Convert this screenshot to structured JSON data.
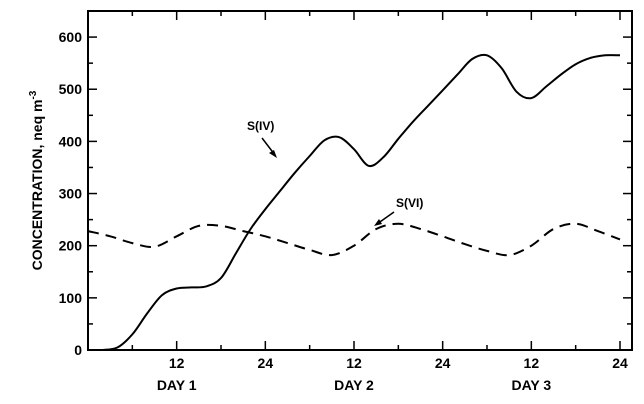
{
  "chart_data": {
    "type": "line",
    "ylabel": "CONCENTRATION, neq m",
    "ylabel_superscript": "-3",
    "xlim": [
      0,
      72
    ],
    "ylim": [
      0,
      650
    ],
    "yticks": [
      0,
      100,
      200,
      300,
      400,
      500,
      600
    ],
    "xticks": [
      {
        "x": 12,
        "label": "12"
      },
      {
        "x": 24,
        "label": "24"
      },
      {
        "x": 36,
        "label": "12"
      },
      {
        "x": 48,
        "label": "24"
      },
      {
        "x": 60,
        "label": "12"
      },
      {
        "x": 72,
        "label": "24"
      }
    ],
    "day_labels": [
      {
        "x": 12,
        "label": "DAY 1"
      },
      {
        "x": 36,
        "label": "DAY 2"
      },
      {
        "x": 60,
        "label": "DAY 3"
      }
    ],
    "series": [
      {
        "name": "S(IV)",
        "style": "solid",
        "x": [
          2,
          4,
          6,
          8,
          10,
          12,
          14,
          16,
          18,
          20,
          22,
          24,
          26,
          28,
          30,
          32,
          34,
          36,
          38,
          40,
          42,
          44,
          46,
          48,
          50,
          52,
          54,
          56,
          58,
          60,
          62,
          64,
          66,
          68,
          70,
          72
        ],
        "y": [
          0,
          5,
          30,
          70,
          105,
          118,
          120,
          122,
          138,
          185,
          232,
          270,
          305,
          340,
          372,
          402,
          408,
          385,
          353,
          370,
          405,
          438,
          468,
          498,
          528,
          558,
          565,
          540,
          495,
          483,
          505,
          528,
          548,
          560,
          565,
          565
        ]
      },
      {
        "name": "S(VI)",
        "style": "dashed",
        "x": [
          0,
          3,
          6,
          9,
          12,
          15,
          18,
          21,
          24,
          27,
          30,
          33,
          36,
          39,
          42,
          45,
          48,
          51,
          54,
          57,
          60,
          63,
          66,
          69,
          72
        ],
        "y": [
          228,
          218,
          205,
          198,
          218,
          238,
          238,
          228,
          218,
          205,
          192,
          182,
          200,
          232,
          242,
          232,
          218,
          203,
          190,
          182,
          200,
          232,
          242,
          228,
          212
        ]
      }
    ]
  }
}
